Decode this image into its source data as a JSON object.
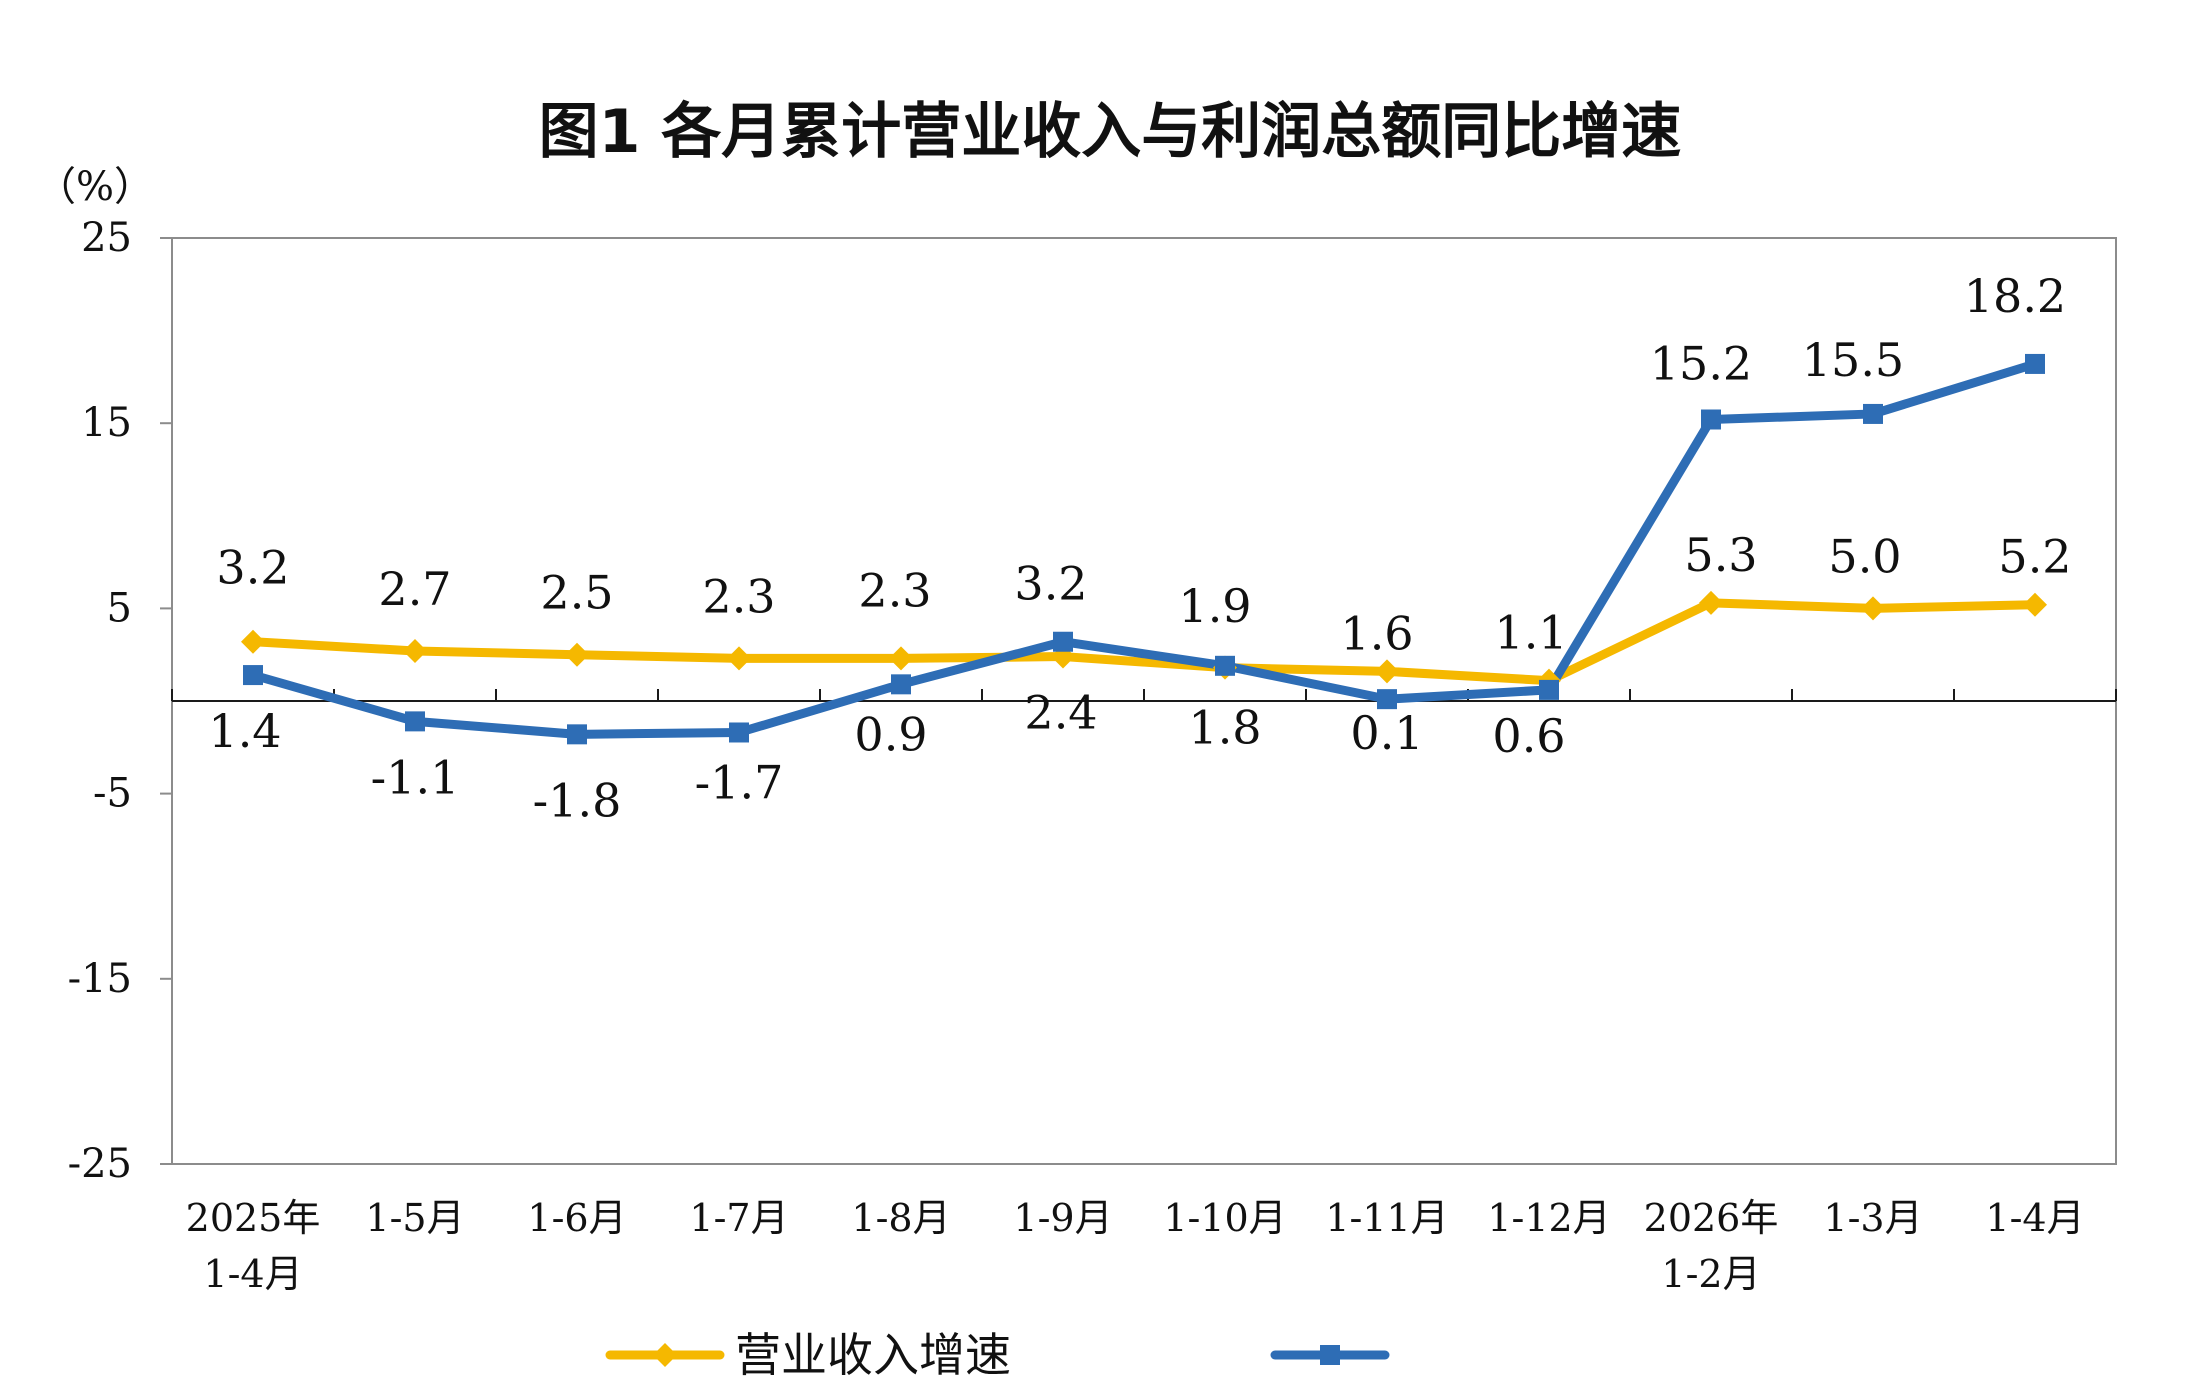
{
  "chart_data": {
    "type": "line",
    "title": "图1  各月累计营业收入与利润总额同比增速",
    "unit_label": "（%）",
    "categories": [
      [
        "2025年",
        "1-4月"
      ],
      [
        "1-5月"
      ],
      [
        "1-6月"
      ],
      [
        "1-7月"
      ],
      [
        "1-8月"
      ],
      [
        "1-9月"
      ],
      [
        "1-10月"
      ],
      [
        "1-11月"
      ],
      [
        "1-12月"
      ],
      [
        "2026年",
        "1-2月"
      ],
      [
        "1-3月"
      ],
      [
        "1-4月"
      ]
    ],
    "ylim": [
      -25,
      25
    ],
    "yticks": [
      25,
      15,
      5,
      -5,
      -15,
      -25
    ],
    "grid": false,
    "legend_position": "bottom",
    "series": [
      {
        "name": "营业收入增速",
        "color": "#F5B800",
        "marker": "diamond",
        "values": [
          3.2,
          2.7,
          2.5,
          2.3,
          2.3,
          2.4,
          1.8,
          1.6,
          1.1,
          5.3,
          5.0,
          5.2
        ],
        "labels": [
          "3.2",
          "2.7",
          "2.5",
          "2.3",
          "2.3",
          "2.4",
          "1.8",
          "1.6",
          "1.1",
          "5.3",
          "5.0",
          "5.2"
        ]
      },
      {
        "name": "",
        "color": "#2E6DB5",
        "marker": "square",
        "values": [
          1.4,
          -1.1,
          -1.8,
          -1.7,
          0.9,
          3.2,
          1.9,
          0.1,
          0.6,
          15.2,
          15.5,
          18.2
        ],
        "labels": [
          "1.4",
          "-1.1",
          "-1.8",
          "-1.7",
          "0.9",
          "3.2",
          "1.9",
          "0.1",
          "0.6",
          "15.2",
          "15.5",
          "18.2"
        ]
      }
    ]
  }
}
